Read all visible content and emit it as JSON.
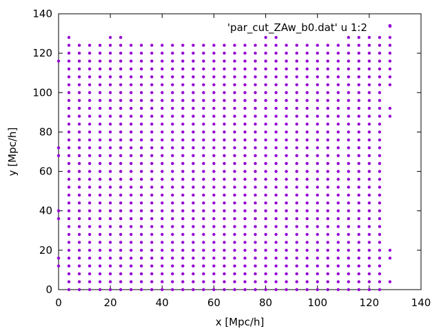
{
  "chart_data": {
    "type": "scatter",
    "title": "",
    "xlabel": "x [Mpc/h]",
    "ylabel": "y [Mpc/h]",
    "xlim": [
      0,
      140
    ],
    "ylim": [
      0,
      140
    ],
    "xticks": [
      0,
      20,
      40,
      60,
      80,
      100,
      120,
      140
    ],
    "yticks": [
      0,
      20,
      40,
      60,
      80,
      100,
      120,
      140
    ],
    "grid": false,
    "legend_position": "top-right",
    "series": [
      {
        "name": "'par_cut_ZAw_b0.dat' u 1:2",
        "color": "#9400d3",
        "marker": "dot",
        "grid_spacing": 4,
        "main_block": {
          "x_from": 4,
          "x_to": 124,
          "y_from": 0,
          "y_to": 124
        },
        "extra_points": [
          [
            0,
            12
          ],
          [
            0,
            16
          ],
          [
            0,
            36
          ],
          [
            0,
            40
          ],
          [
            0,
            68
          ],
          [
            0,
            72
          ],
          [
            0,
            116
          ],
          [
            4,
            128
          ],
          [
            20,
            128
          ],
          [
            24,
            128
          ],
          [
            80,
            128
          ],
          [
            84,
            128
          ],
          [
            112,
            128
          ],
          [
            116,
            128
          ],
          [
            120,
            128
          ],
          [
            124,
            128
          ],
          [
            128,
            4
          ],
          [
            128,
            16
          ],
          [
            128,
            20
          ],
          [
            128,
            88
          ],
          [
            128,
            92
          ],
          [
            128,
            104
          ],
          [
            128,
            108
          ],
          [
            128,
            112
          ],
          [
            128,
            116
          ],
          [
            128,
            120
          ],
          [
            128,
            124
          ],
          [
            128,
            128
          ],
          [
            128,
            134
          ]
        ]
      }
    ]
  }
}
